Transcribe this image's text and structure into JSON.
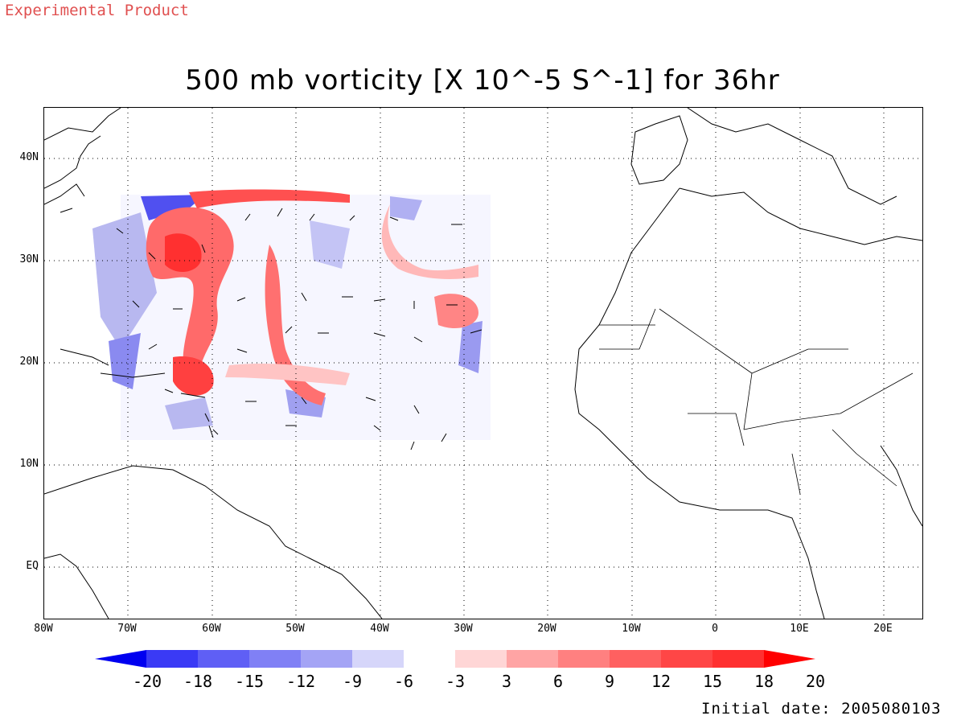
{
  "header": {
    "product_tag": "Experimental Product",
    "title": "500 mb vorticity [X 10^-5 S^-1] for 36hr"
  },
  "map": {
    "lat_labels": [
      "40N",
      "30N",
      "20N",
      "10N",
      "EQ"
    ],
    "lon_labels": [
      "80W",
      "70W",
      "60W",
      "50W",
      "40W",
      "30W",
      "20W",
      "10W",
      "0",
      "10E",
      "20E"
    ]
  },
  "colorbar": {
    "labels": [
      "-20",
      "-18",
      "-15",
      "-12",
      "-9",
      "-6",
      "-3",
      "3",
      "6",
      "9",
      "12",
      "15",
      "18",
      "20"
    ],
    "colors": [
      "#0000f0",
      "#3a3af5",
      "#5f5ff5",
      "#8080f5",
      "#a4a4f5",
      "#d6d6fa",
      "#ffffff",
      "#ffd6d6",
      "#ffa4a4",
      "#ff8080",
      "#ff6060",
      "#ff4646",
      "#ff3030",
      "#ff0000"
    ]
  },
  "footer": {
    "initial_date": "Initial date: 2005080103"
  }
}
